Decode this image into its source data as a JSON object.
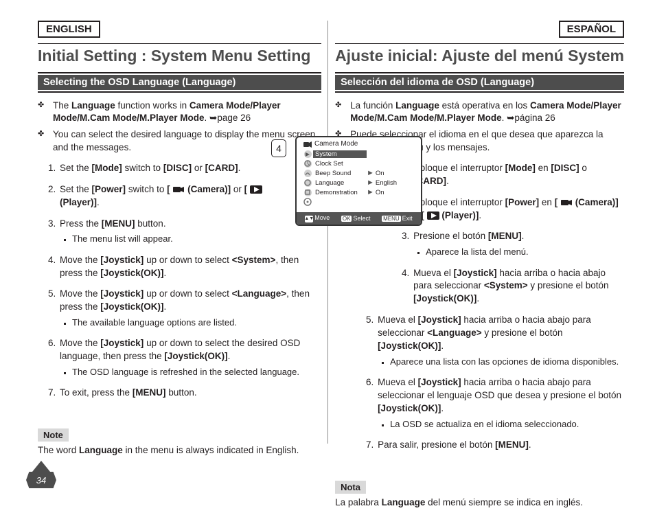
{
  "left": {
    "lang": "ENGLISH",
    "title": "Initial Setting : System Menu Setting",
    "subbar": "Selecting the OSD Language (Language)",
    "bullets": [
      "The <b>Language</b> function works in <b>Camera Mode/Player Mode/M.Cam Mode/M.Player Mode</b>. <span class='arrow-ref'>➥</span>page 26",
      "You can select the desired language to display the menu screen and the messages."
    ],
    "steps": [
      {
        "html": "Set the <b>[Mode]</b> switch to <b>[DISC]</b> or <b>[CARD]</b>.",
        "narrow": true
      },
      {
        "html": "Set the <b>[Power]</b> switch to <b>[ <svg class='icon-cam' width='18' height='12'><rect x='1' y='2' width='11' height='8' rx='1' fill='#231f20'/><polygon points='12,4 17,2 17,10 12,8' fill='#231f20'/></svg> (Camera)]</b> or <b>[ <svg class='icon-play' width='18' height='12'><rect x='0' y='0' width='18' height='12' rx='2' fill='#231f20'/><polygon points='6,2 14,6 6,10' fill='#fff'/></svg> (Player)]</b>.",
        "narrow": true
      },
      {
        "html": "Press the <b>[MENU]</b> button.",
        "narrow": true,
        "sub": [
          "The menu list will appear."
        ]
      },
      {
        "html": "Move the <b>[Joystick]</b> up or down to select <b>&lt;System&gt;</b>, then press the <b>[Joystick(OK)]</b>.",
        "narrow": true
      },
      {
        "html": "Move the <b>[Joystick]</b> up or down to select <b>&lt;Language&gt;</b>, then press the <b>[Joystick(OK)]</b>.",
        "sub": [
          "The available language options are listed."
        ]
      },
      {
        "html": "Move the <b>[Joystick]</b> up or down to select the desired OSD language, then press the <b>[Joystick(OK)]</b>.",
        "sub": [
          "The OSD language is refreshed in the selected language."
        ]
      },
      {
        "html": "To exit, press the <b>[MENU]</b> button."
      }
    ],
    "note_label": "Note",
    "note_text": "The word <b>Language</b> in the menu is always indicated in English."
  },
  "right": {
    "lang": "ESPAÑOL",
    "title": "Ajuste inicial: Ajuste del menú System",
    "subbar": "Selección del idioma de OSD (Language)",
    "bullets": [
      "La función <b>Language</b> está operativa en los <b>Camera Mode/Player Mode/M.Cam Mode/M.Player Mode</b>. <span class='arrow-ref'>➥</span>página 26",
      "Puede seleccionar el idioma en el que desea que aparezca la pantalla del menú y los mensajes."
    ],
    "steps": [
      {
        "html": "Coloque el interruptor <b>[Mode]</b> en <b>[DISC]</b> o <b>[CARD]</b>.",
        "indent": true
      },
      {
        "html": "Coloque el interruptor <b>[Power]</b> en <b>[ <svg class='icon-cam' width='18' height='12'><rect x='1' y='2' width='11' height='8' rx='1' fill='#231f20'/><polygon points='12,4 17,2 17,10 12,8' fill='#231f20'/></svg> (Camera)]</b> o <b>[ <svg class='icon-play' width='18' height='12'><rect x='0' y='0' width='18' height='12' rx='2' fill='#231f20'/><polygon points='6,2 14,6 6,10' fill='#fff'/></svg> (Player)]</b>.",
        "indent": true
      },
      {
        "html": "Presione el botón <b>[MENU]</b>.",
        "indent": true,
        "sub": [
          "Aparece la lista del menú."
        ]
      },
      {
        "html": "Mueva el <b>[Joystick]</b> hacia arriba o hacia abajo para seleccionar <b>&lt;System&gt;</b> y presione el botón <b>[Joystick(OK)]</b>.",
        "indent": true
      },
      {
        "html": "Mueva el <b>[Joystick]</b> hacia arriba o hacia abajo para seleccionar <b>&lt;Language&gt;</b> y presione el botón <b>[Joystick(OK)]</b>.",
        "sub": [
          "Aparece una lista con las opciones de idioma disponibles."
        ]
      },
      {
        "html": "Mueva el <b>[Joystick]</b> hacia arriba o hacia abajo para seleccionar el lenguaje OSD que desea y presione el botón <b>[Joystick(OK)]</b>.",
        "sub": [
          "La OSD se actualiza en el idioma seleccionado."
        ]
      },
      {
        "html": "Para salir, presione el botón <b>[MENU]</b>."
      }
    ],
    "note_label": "Nota",
    "note_text": "La palabra <b>Language</b> del menú siempre se indica en inglés."
  },
  "osd": {
    "badge": "4",
    "mode": "Camera Mode",
    "tab": "System",
    "rows": [
      {
        "label": "Clock Set",
        "val": ""
      },
      {
        "label": "Beep Sound",
        "val": "On"
      },
      {
        "label": "Language",
        "val": "English"
      },
      {
        "label": "Demonstration",
        "val": "On"
      }
    ],
    "footer": {
      "move": "Move",
      "select": "Select",
      "exit": "Exit",
      "ok": "OK",
      "menu": "MENU"
    }
  },
  "page_number": "34"
}
